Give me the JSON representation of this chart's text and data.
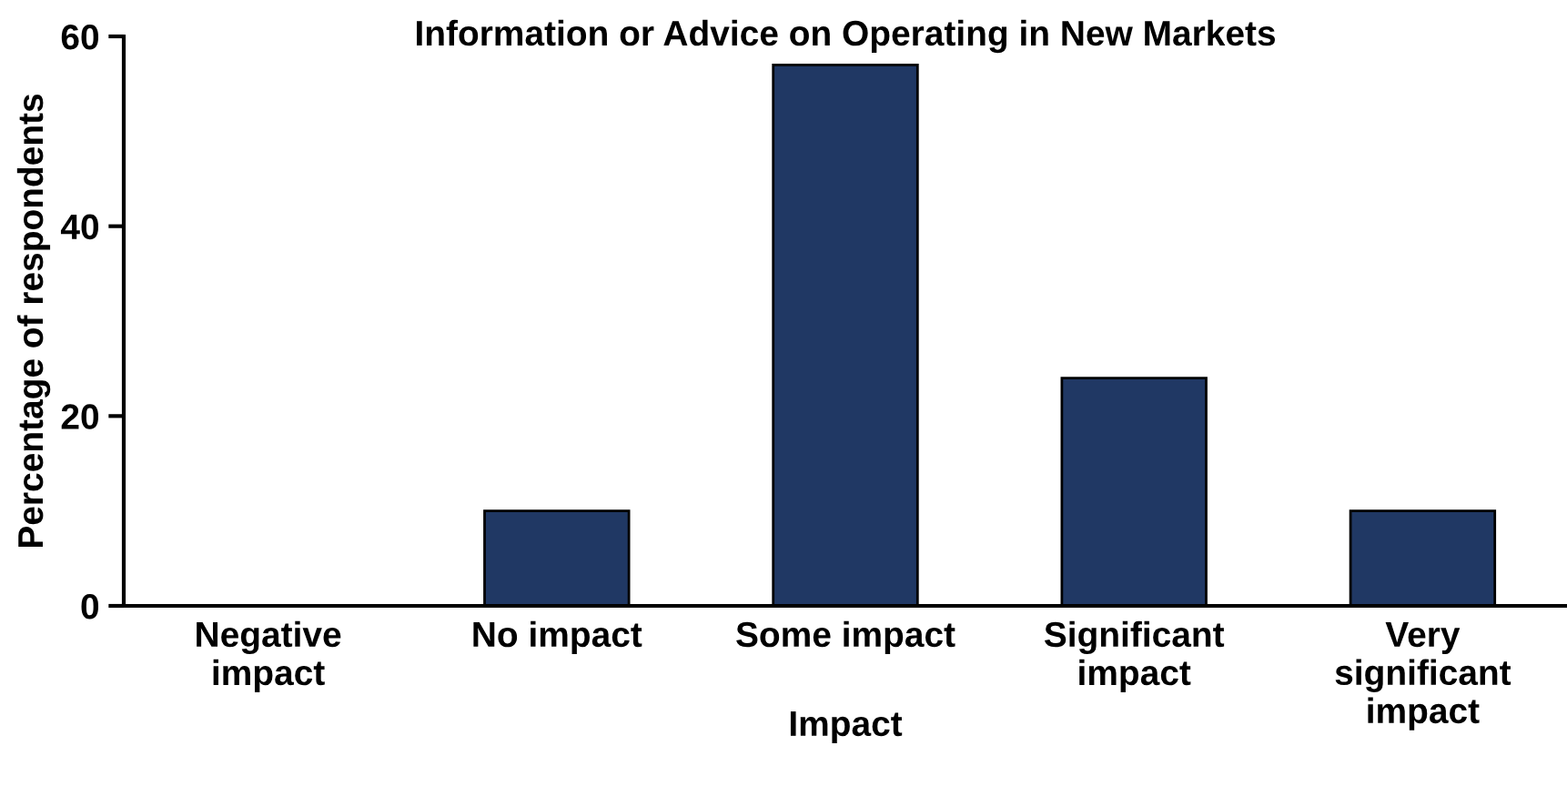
{
  "chart_data": {
    "type": "bar",
    "title": "Information or Advice on Operating in New Markets",
    "xlabel": "Impact",
    "ylabel": "Percentage of respondents",
    "categories": [
      "Negative\nimpact",
      "No impact",
      "Some impact",
      "Significant\nimpact",
      "Very\nsignificant\nimpact"
    ],
    "values": [
      0,
      10,
      57,
      24,
      10
    ],
    "color": "#203864",
    "ylim": [
      0,
      60
    ],
    "yticks": [
      0,
      20,
      40,
      60
    ],
    "grid": false,
    "legend": false
  }
}
